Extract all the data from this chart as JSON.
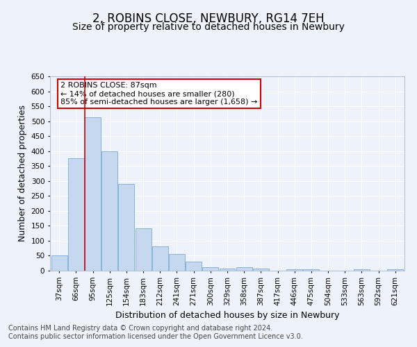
{
  "title": "2, ROBINS CLOSE, NEWBURY, RG14 7EH",
  "subtitle": "Size of property relative to detached houses in Newbury",
  "xlabel": "Distribution of detached houses by size in Newbury",
  "ylabel": "Number of detached properties",
  "categories": [
    "37sqm",
    "66sqm",
    "95sqm",
    "125sqm",
    "154sqm",
    "183sqm",
    "212sqm",
    "241sqm",
    "271sqm",
    "300sqm",
    "329sqm",
    "358sqm",
    "387sqm",
    "417sqm",
    "446sqm",
    "475sqm",
    "504sqm",
    "533sqm",
    "563sqm",
    "592sqm",
    "621sqm"
  ],
  "values": [
    50,
    375,
    512,
    399,
    291,
    142,
    82,
    55,
    30,
    11,
    8,
    11,
    8,
    0,
    5,
    5,
    0,
    0,
    4,
    0,
    4
  ],
  "bar_color": "#c5d8f0",
  "bar_edge_color": "#7aaad4",
  "vline_x_index": 2,
  "annotation_text": "2 ROBINS CLOSE: 87sqm\n← 14% of detached houses are smaller (280)\n85% of semi-detached houses are larger (1,658) →",
  "annotation_box_color": "#ffffff",
  "annotation_box_edge_color": "#cc0000",
  "vline_color": "#cc0000",
  "ylim": [
    0,
    650
  ],
  "yticks": [
    0,
    50,
    100,
    150,
    200,
    250,
    300,
    350,
    400,
    450,
    500,
    550,
    600,
    650
  ],
  "footer_line1": "Contains HM Land Registry data © Crown copyright and database right 2024.",
  "footer_line2": "Contains public sector information licensed under the Open Government Licence v3.0.",
  "background_color": "#eef2fa",
  "grid_color": "#ffffff",
  "title_fontsize": 12,
  "subtitle_fontsize": 10,
  "ylabel_fontsize": 9,
  "xlabel_fontsize": 9,
  "tick_fontsize": 7.5,
  "annotation_fontsize": 8,
  "footer_fontsize": 7
}
